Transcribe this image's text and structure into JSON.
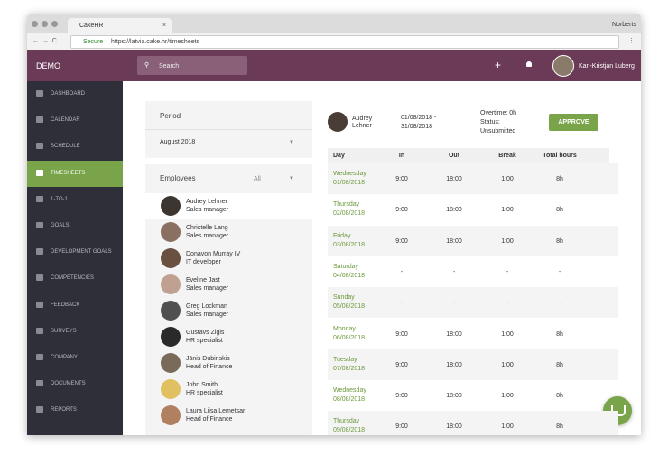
{
  "browser": {
    "tab_title": "CakeHR",
    "user": "Norberts",
    "secure": "Secure",
    "url": "https://latvia.cake.hr/timesheets"
  },
  "header": {
    "brand": "DEMO",
    "search": "Search",
    "user_name": "Karl-Kristjan Luberg"
  },
  "sidebar": {
    "items": [
      "DASHBOARD",
      "CALENDAR",
      "SCHEDULE",
      "TIMESHEETS",
      "1-TO-1",
      "GOALS",
      "DEVELOPMENT GOALS",
      "COMPETENCIES",
      "FEEDBACK",
      "SURVEYS",
      "COMPANY",
      "DOCUMENTS",
      "REPORTS"
    ],
    "active_index": 3
  },
  "period": {
    "title": "Period",
    "value": "August 2018"
  },
  "employees": {
    "title": "Employees",
    "filter": "All",
    "selected_index": 0,
    "list": [
      {
        "name": "Audrey Lehner",
        "role": "Sales manager"
      },
      {
        "name": "Christelle Lang",
        "role": "Sales manager"
      },
      {
        "name": "Donavon Murray IV",
        "role": "IT developer"
      },
      {
        "name": "Eveline Jast",
        "role": "Sales manager"
      },
      {
        "name": "Greg Lockman",
        "role": "Sales manager"
      },
      {
        "name": "Gustavs Zigis",
        "role": "HR specialist"
      },
      {
        "name": "Jānis Dubinskis",
        "role": "Head of Finance"
      },
      {
        "name": "John Smith",
        "role": "HR specialist"
      },
      {
        "name": "Laura Liisa Lemetsar",
        "role": "Head of Finance"
      }
    ]
  },
  "timesheet": {
    "employee": [
      "Audrey",
      "Lehner"
    ],
    "period": [
      "01/08/2018 -",
      "31/08/2018"
    ],
    "overtime": "Overtime: 0h",
    "status_label": "Status:",
    "status": "Unsubmitted",
    "button": "APPROVE",
    "columns": [
      "Day",
      "In",
      "Out",
      "Break",
      "Total hours"
    ],
    "rows": [
      [
        "Wednesday",
        "01/08/2018",
        "9:00",
        "18:00",
        "1:00",
        "8h"
      ],
      [
        "Thursday",
        "02/08/2018",
        "9:00",
        "18:00",
        "1:00",
        "8h"
      ],
      [
        "Friday",
        "03/08/2018",
        "9:00",
        "18:00",
        "1:00",
        "8h"
      ],
      [
        "Saturday",
        "04/08/2018",
        "-",
        "-",
        "-",
        "-"
      ],
      [
        "Sunday",
        "05/08/2018",
        "-",
        "-",
        "-",
        "-"
      ],
      [
        "Monday",
        "06/08/2018",
        "9:00",
        "18:00",
        "1:00",
        "8h"
      ],
      [
        "Tuesday",
        "07/08/2018",
        "9:00",
        "18:00",
        "1:00",
        "8h"
      ],
      [
        "Wednesday",
        "08/08/2018",
        "9:00",
        "18:00",
        "1:00",
        "8h"
      ],
      [
        "Thursday",
        "09/08/2018",
        "9:00",
        "18:00",
        "1:00",
        "8h"
      ]
    ]
  }
}
